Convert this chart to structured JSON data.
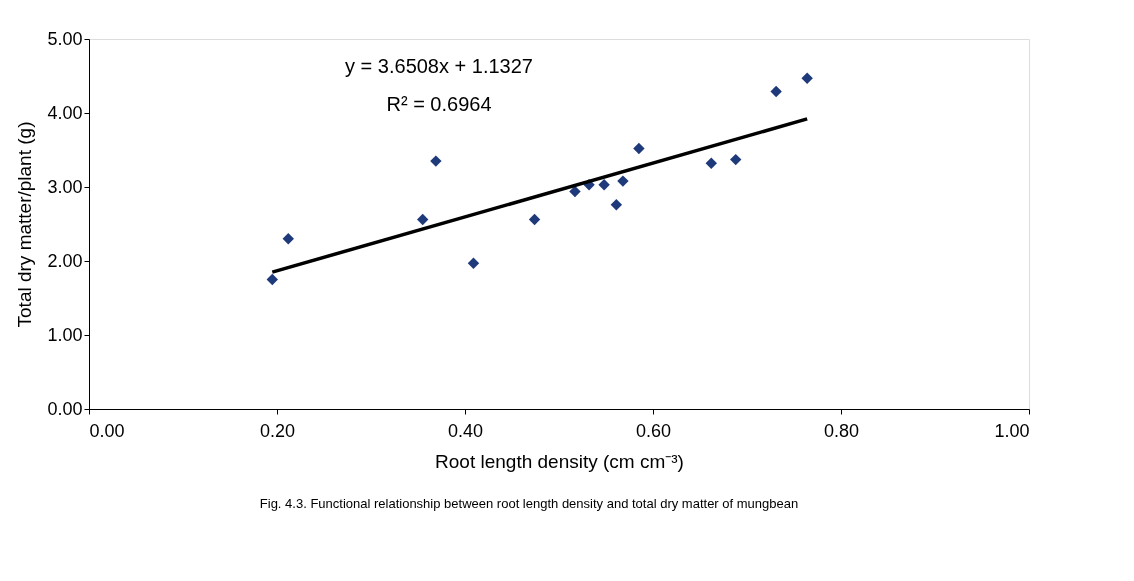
{
  "chart_data": {
    "type": "scatter",
    "xlabel": "Root length density (cm cm⁻³)",
    "ylabel": "Total dry matter/plant (g)",
    "annotations": [
      "y = 3.6508x + 1.1327",
      "R² = 0.6964",
      "Fig. 4.3. Functional relationship between root length density and total dry matter of mungbean"
    ],
    "series": [
      {
        "color": "#1f3a7a",
        "marker": "diamond",
        "x": [
          0.195,
          0.212,
          0.355,
          0.369,
          0.409,
          0.474,
          0.517,
          0.532,
          0.548,
          0.561,
          0.568,
          0.585,
          0.662,
          0.688,
          0.731,
          0.764
        ],
        "values": [
          1.75,
          2.3,
          2.56,
          3.35,
          1.97,
          2.56,
          2.94,
          3.03,
          3.03,
          2.76,
          3.08,
          3.52,
          3.32,
          3.37,
          4.29,
          4.47
        ]
      },
      {
        "type": "line",
        "color": "#000000",
        "marker": "none",
        "x": [
          0.195,
          0.764
        ],
        "values": [
          1.85,
          3.92
        ]
      }
    ],
    "xlim": [
      0,
      1
    ],
    "xticks": [
      {
        "value": 0,
        "label": "0.00"
      },
      {
        "value": 0.2,
        "label": "0.20"
      },
      {
        "value": 0.4,
        "label": "0.40"
      },
      {
        "value": 0.6,
        "label": "0.60"
      },
      {
        "value": 0.8,
        "label": "0.80"
      },
      {
        "value": 1,
        "label": "1.00"
      }
    ],
    "ylim": [
      0,
      5
    ],
    "yticks": [
      {
        "value": 0,
        "label": "0.00"
      },
      {
        "value": 1,
        "label": "1.00"
      },
      {
        "value": 2,
        "label": "2.00"
      },
      {
        "value": 3,
        "label": "3.00"
      },
      {
        "value": 4,
        "label": "4.00"
      },
      {
        "value": 5,
        "label": "5.00"
      }
    ],
    "grid": false
  }
}
